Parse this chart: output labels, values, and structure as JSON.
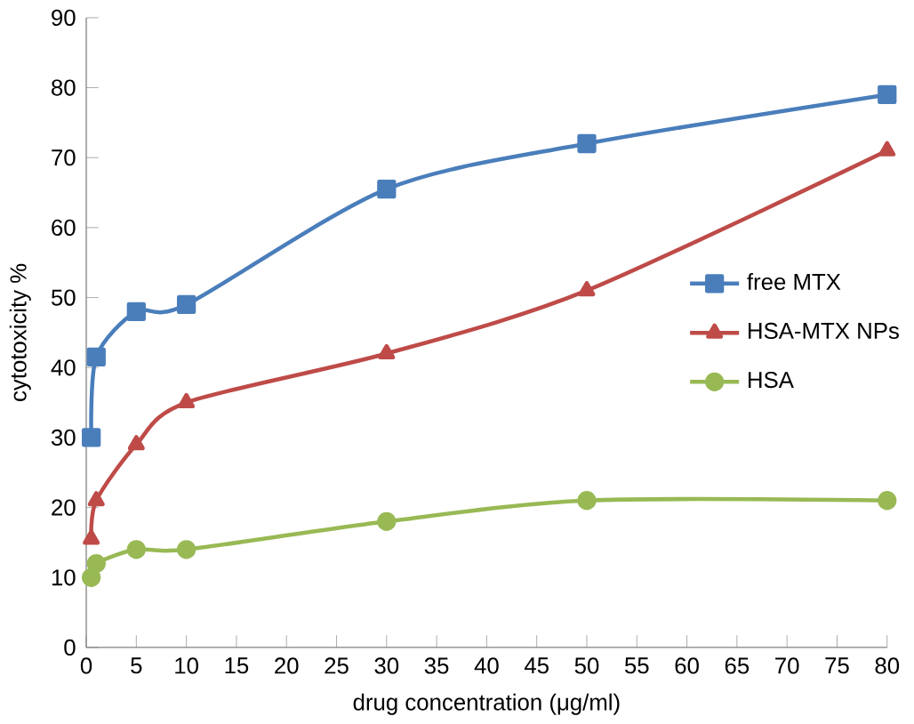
{
  "chart_data": {
    "type": "line",
    "xlabel": "drug concentration  (μg/ml)",
    "ylabel": "cytotoxicity %",
    "xlim": [
      0,
      80
    ],
    "ylim": [
      0,
      90
    ],
    "xticks": [
      0,
      5,
      10,
      15,
      20,
      25,
      30,
      35,
      40,
      45,
      50,
      55,
      60,
      65,
      70,
      75,
      80
    ],
    "yticks": [
      0,
      10,
      20,
      30,
      40,
      50,
      60,
      70,
      80,
      90
    ],
    "grid": false,
    "legend": "right",
    "series": [
      {
        "name": "free MTX",
        "color": "#4a7ebb",
        "marker": "square",
        "x": [
          0.5,
          1,
          5,
          10,
          30,
          50,
          80
        ],
        "values": [
          30,
          41.5,
          48,
          49,
          65.5,
          72,
          79
        ]
      },
      {
        "name": "HSA-MTX NPs",
        "color": "#be4b48",
        "marker": "triangle",
        "x": [
          0.5,
          1,
          5,
          10,
          30,
          50,
          80
        ],
        "values": [
          15.5,
          21,
          29,
          35,
          42,
          51,
          71
        ]
      },
      {
        "name": "HSA",
        "color": "#98b954",
        "marker": "circle",
        "x": [
          0.5,
          1,
          5,
          10,
          30,
          50,
          80
        ],
        "values": [
          10,
          12,
          14,
          14,
          18,
          21,
          21
        ]
      }
    ]
  }
}
